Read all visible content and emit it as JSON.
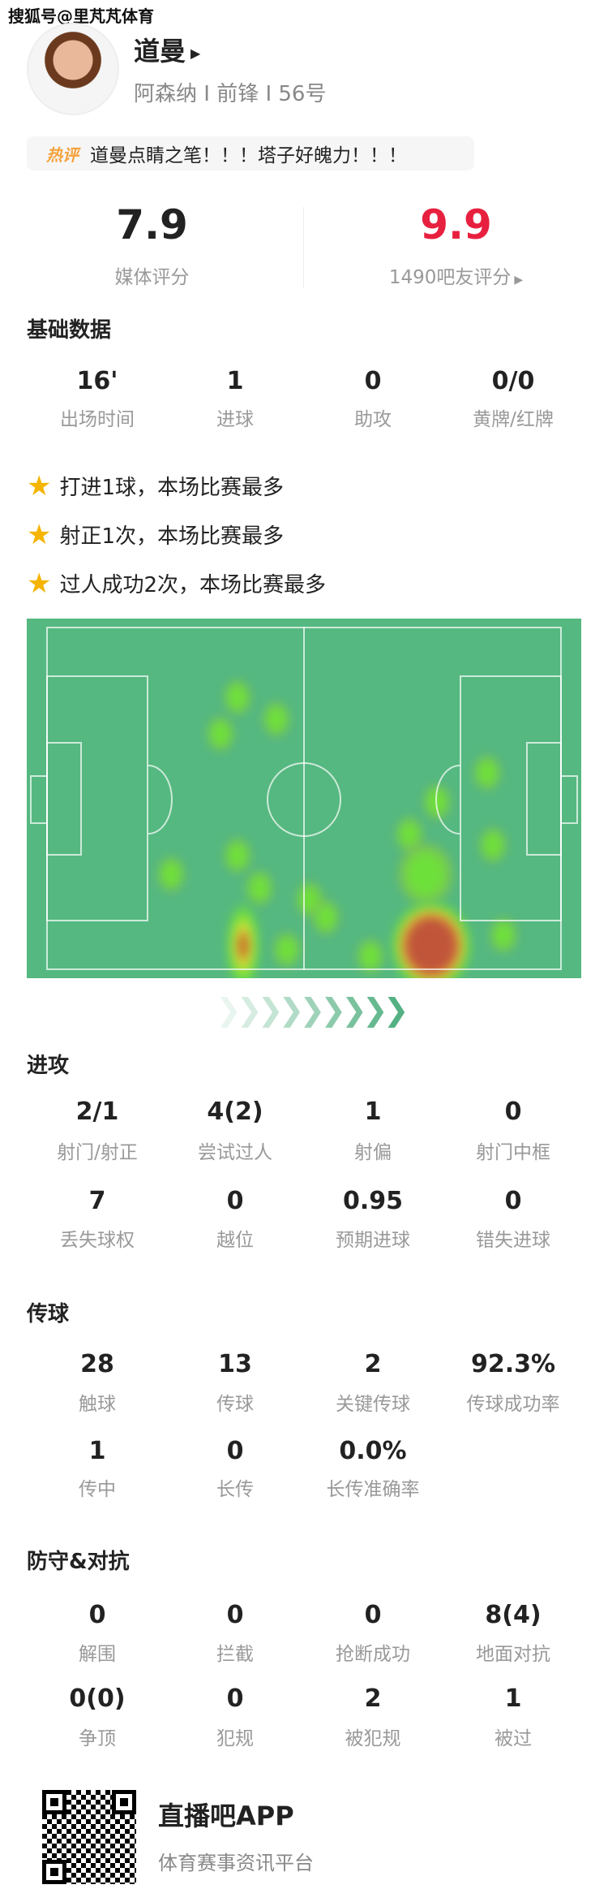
{
  "watermark": "搜狐号@里芃芃体育",
  "player": {
    "name": "道曼",
    "team": "阿森纳",
    "position": "前锋",
    "number": "56号",
    "subtitle": "阿森纳 I 前锋 I 56号"
  },
  "hot_comment": {
    "tag": "热评",
    "text": "道曼点睛之笔！！！塔子好魄力！！！"
  },
  "ratings": {
    "media_score": "7.9",
    "media_label": "媒体评分",
    "fan_score": "9.9",
    "fan_label": "1490吧友评分",
    "fan_color": "#e8203f"
  },
  "basic": {
    "title": "基础数据",
    "stats": [
      {
        "value": "16'",
        "label": "出场时间"
      },
      {
        "value": "1",
        "label": "进球"
      },
      {
        "value": "0",
        "label": "助攻"
      },
      {
        "value": "0/0",
        "label": "黄牌/红牌"
      }
    ]
  },
  "highlights": [
    "打进1球，本场比赛最多",
    "射正1次，本场比赛最多",
    "过人成功2次，本场比赛最多"
  ],
  "heatmap": {
    "pitch_color": "#55b880",
    "attack_direction": "right"
  },
  "attack": {
    "title": "进攻",
    "stats": [
      {
        "value": "2/1",
        "label": "射门/射正"
      },
      {
        "value": "4(2)",
        "label": "尝试过人"
      },
      {
        "value": "1",
        "label": "射偏"
      },
      {
        "value": "0",
        "label": "射门中框"
      },
      {
        "value": "7",
        "label": "丢失球权"
      },
      {
        "value": "0",
        "label": "越位"
      },
      {
        "value": "0.95",
        "label": "预期进球"
      },
      {
        "value": "0",
        "label": "错失进球"
      }
    ]
  },
  "passing": {
    "title": "传球",
    "stats": [
      {
        "value": "28",
        "label": "触球"
      },
      {
        "value": "13",
        "label": "传球"
      },
      {
        "value": "2",
        "label": "关键传球"
      },
      {
        "value": "92.3%",
        "label": "传球成功率"
      },
      {
        "value": "1",
        "label": "传中"
      },
      {
        "value": "0",
        "label": "长传"
      },
      {
        "value": "0.0%",
        "label": "长传准确率"
      }
    ]
  },
  "defense": {
    "title": "防守&对抗",
    "stats": [
      {
        "value": "0",
        "label": "解围"
      },
      {
        "value": "0",
        "label": "拦截"
      },
      {
        "value": "0",
        "label": "抢断成功"
      },
      {
        "value": "8(4)",
        "label": "地面对抗"
      },
      {
        "value": "0(0)",
        "label": "争顶"
      },
      {
        "value": "0",
        "label": "犯规"
      },
      {
        "value": "2",
        "label": "被犯规"
      },
      {
        "value": "1",
        "label": "被过"
      }
    ]
  },
  "footer": {
    "app_name": "直播吧APP",
    "slogan": "体育赛事资讯平台"
  }
}
